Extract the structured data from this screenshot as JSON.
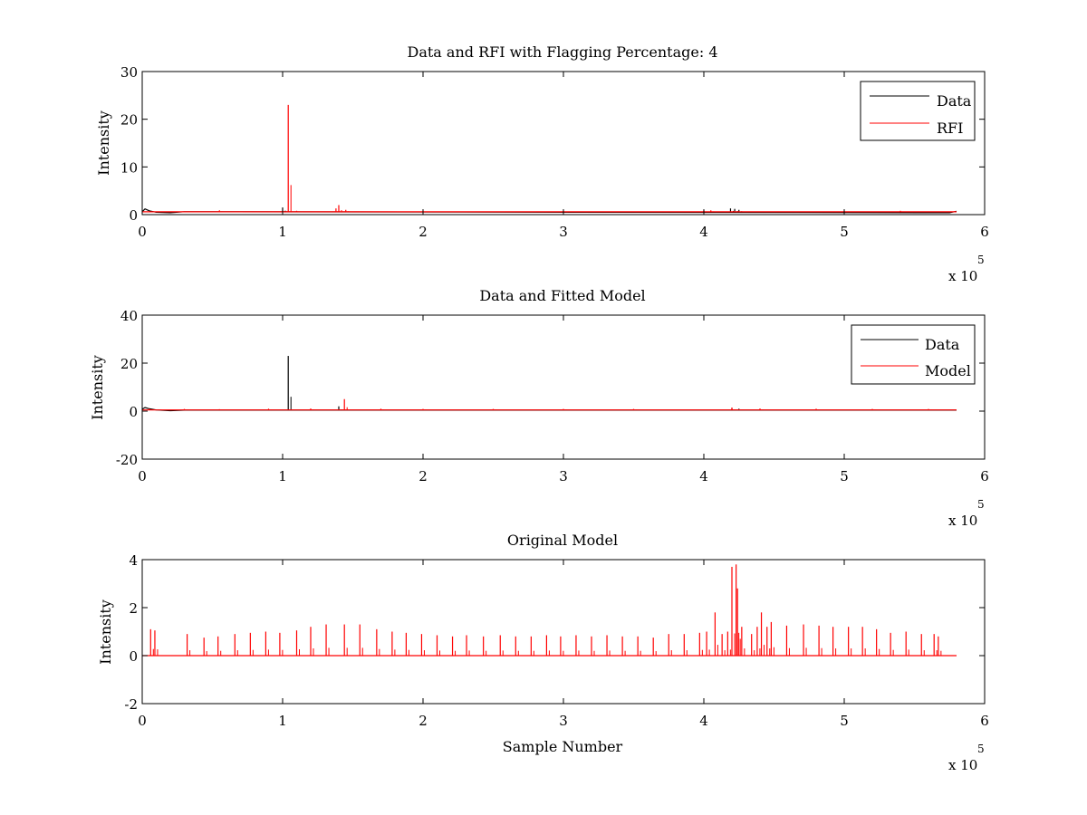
{
  "figure": {
    "background": "#ffffff",
    "series_colors": {
      "data": "#000000",
      "rfi": "#ff0000",
      "model": "#ff0000"
    }
  },
  "chart_data": [
    {
      "type": "line",
      "title": "Data and RFI with Flagging Percentage: 4",
      "xlabel": "",
      "ylabel": "Intensity",
      "xlim": [
        0,
        6
      ],
      "ylim": [
        0,
        30
      ],
      "xticks": [
        "0",
        "1",
        "2",
        "3",
        "4",
        "5",
        "6"
      ],
      "yticks": [
        "0",
        "10",
        "20",
        "30"
      ],
      "x_multiplier": {
        "base": "x 10",
        "exponent": "5"
      },
      "legend": {
        "position": "top-right",
        "entries": [
          "Data",
          "RFI"
        ]
      },
      "grid": false,
      "series": [
        {
          "name": "Data",
          "color": "#000000",
          "baseline": 0.6,
          "x_end": 5.8,
          "points": [
            [
              0,
              0.6
            ],
            [
              0.02,
              1.2
            ],
            [
              0.05,
              0.8
            ],
            [
              0.1,
              0.5
            ],
            [
              0.2,
              0.4
            ],
            [
              0.3,
              0.6
            ],
            [
              5.75,
              0.4
            ],
            [
              5.8,
              0.7
            ]
          ],
          "spikes": [
            [
              1.0,
              1.5
            ],
            [
              4.19,
              1.3
            ],
            [
              4.22,
              1.2
            ],
            [
              4.25,
              1.0
            ]
          ]
        },
        {
          "name": "RFI",
          "color": "#ff0000",
          "baseline": 0.6,
          "x_end": 5.8,
          "spikes": [
            [
              0.55,
              0.9
            ],
            [
              1.04,
              23.0
            ],
            [
              1.1,
              0.8
            ],
            [
              1.38,
              1.3
            ],
            [
              1.4,
              2.0
            ],
            [
              1.45,
              1.0
            ],
            [
              4.0,
              0.9
            ],
            [
              4.05,
              0.9
            ],
            [
              5.4,
              0.8
            ]
          ]
        }
      ]
    },
    {
      "type": "line",
      "title": "Data and Fitted Model",
      "xlabel": "",
      "ylabel": "Intensity",
      "xlim": [
        0,
        6
      ],
      "ylim": [
        -20,
        40
      ],
      "xticks": [
        "0",
        "1",
        "2",
        "3",
        "4",
        "5",
        "6"
      ],
      "yticks": [
        "-20",
        "0",
        "20",
        "40"
      ],
      "x_multiplier": {
        "base": "x 10",
        "exponent": "5"
      },
      "legend": {
        "position": "top-right",
        "entries": [
          "Data",
          "Model"
        ]
      },
      "grid": false,
      "series": [
        {
          "name": "Data",
          "color": "#000000",
          "baseline": 0.3,
          "x_end": 5.8,
          "points": [
            [
              0,
              0.8
            ],
            [
              0.02,
              1.5
            ],
            [
              0.05,
              1.0
            ],
            [
              0.1,
              0.5
            ],
            [
              0.2,
              0.2
            ],
            [
              0.3,
              0.4
            ],
            [
              5.8,
              0.4
            ]
          ],
          "spikes": [
            [
              1.04,
              23.0
            ],
            [
              1.4,
              2.0
            ],
            [
              4.2,
              1.2
            ],
            [
              4.25,
              1.0
            ]
          ]
        },
        {
          "name": "Model",
          "color": "#ff0000",
          "baseline": 0.5,
          "x_end": 5.8,
          "spikes": [
            [
              0.05,
              1.0
            ],
            [
              0.3,
              0.9
            ],
            [
              0.55,
              0.8
            ],
            [
              0.9,
              1.0
            ],
            [
              1.2,
              1.1
            ],
            [
              1.44,
              5.0
            ],
            [
              1.7,
              1.0
            ],
            [
              2.0,
              0.9
            ],
            [
              2.5,
              0.9
            ],
            [
              3.0,
              0.9
            ],
            [
              3.5,
              0.9
            ],
            [
              4.2,
              1.5
            ],
            [
              4.4,
              1.1
            ],
            [
              4.8,
              1.0
            ],
            [
              5.2,
              0.9
            ],
            [
              5.6,
              0.9
            ]
          ]
        }
      ]
    },
    {
      "type": "line",
      "title": "Original Model",
      "xlabel": "Sample Number",
      "ylabel": "Intensity",
      "xlim": [
        0,
        6
      ],
      "ylim": [
        -2,
        4
      ],
      "xticks": [
        "0",
        "1",
        "2",
        "3",
        "4",
        "5",
        "6"
      ],
      "yticks": [
        "-2",
        "0",
        "2",
        "4"
      ],
      "x_multiplier": {
        "base": "x 10",
        "exponent": "5"
      },
      "legend": null,
      "grid": false,
      "series": [
        {
          "name": "Original Model",
          "color": "#ff0000",
          "baseline": 0.0,
          "x_end": 5.8,
          "spikes": [
            [
              0.06,
              1.1
            ],
            [
              0.09,
              1.05
            ],
            [
              0.32,
              0.9
            ],
            [
              0.44,
              0.75
            ],
            [
              0.54,
              0.8
            ],
            [
              0.66,
              0.9
            ],
            [
              0.77,
              0.95
            ],
            [
              0.88,
              1.0
            ],
            [
              0.98,
              0.95
            ],
            [
              1.1,
              1.05
            ],
            [
              1.2,
              1.2
            ],
            [
              1.31,
              1.3
            ],
            [
              1.44,
              1.3
            ],
            [
              1.55,
              1.3
            ],
            [
              1.67,
              1.1
            ],
            [
              1.78,
              1.0
            ],
            [
              1.88,
              0.95
            ],
            [
              1.99,
              0.9
            ],
            [
              2.1,
              0.85
            ],
            [
              2.21,
              0.8
            ],
            [
              2.31,
              0.85
            ],
            [
              2.43,
              0.8
            ],
            [
              2.55,
              0.85
            ],
            [
              2.66,
              0.8
            ],
            [
              2.77,
              0.8
            ],
            [
              2.88,
              0.85
            ],
            [
              2.98,
              0.8
            ],
            [
              3.09,
              0.85
            ],
            [
              3.2,
              0.8
            ],
            [
              3.31,
              0.85
            ],
            [
              3.42,
              0.8
            ],
            [
              3.53,
              0.8
            ],
            [
              3.64,
              0.75
            ],
            [
              3.75,
              0.9
            ],
            [
              3.86,
              0.9
            ],
            [
              3.97,
              0.95
            ],
            [
              4.02,
              1.0
            ],
            [
              4.08,
              1.8
            ],
            [
              4.13,
              0.9
            ],
            [
              4.17,
              1.0
            ],
            [
              4.2,
              3.7
            ],
            [
              4.23,
              3.8
            ],
            [
              4.24,
              2.8
            ],
            [
              4.27,
              1.2
            ],
            [
              4.34,
              0.9
            ],
            [
              4.38,
              1.2
            ],
            [
              4.41,
              1.8
            ],
            [
              4.45,
              1.2
            ],
            [
              4.48,
              1.4
            ],
            [
              4.59,
              1.25
            ],
            [
              4.71,
              1.3
            ],
            [
              4.82,
              1.25
            ],
            [
              4.92,
              1.2
            ],
            [
              5.03,
              1.2
            ],
            [
              5.13,
              1.2
            ],
            [
              5.23,
              1.1
            ],
            [
              5.33,
              0.95
            ],
            [
              5.44,
              1.0
            ],
            [
              5.55,
              0.9
            ],
            [
              5.64,
              0.9
            ],
            [
              5.67,
              0.8
            ]
          ]
        }
      ]
    }
  ]
}
